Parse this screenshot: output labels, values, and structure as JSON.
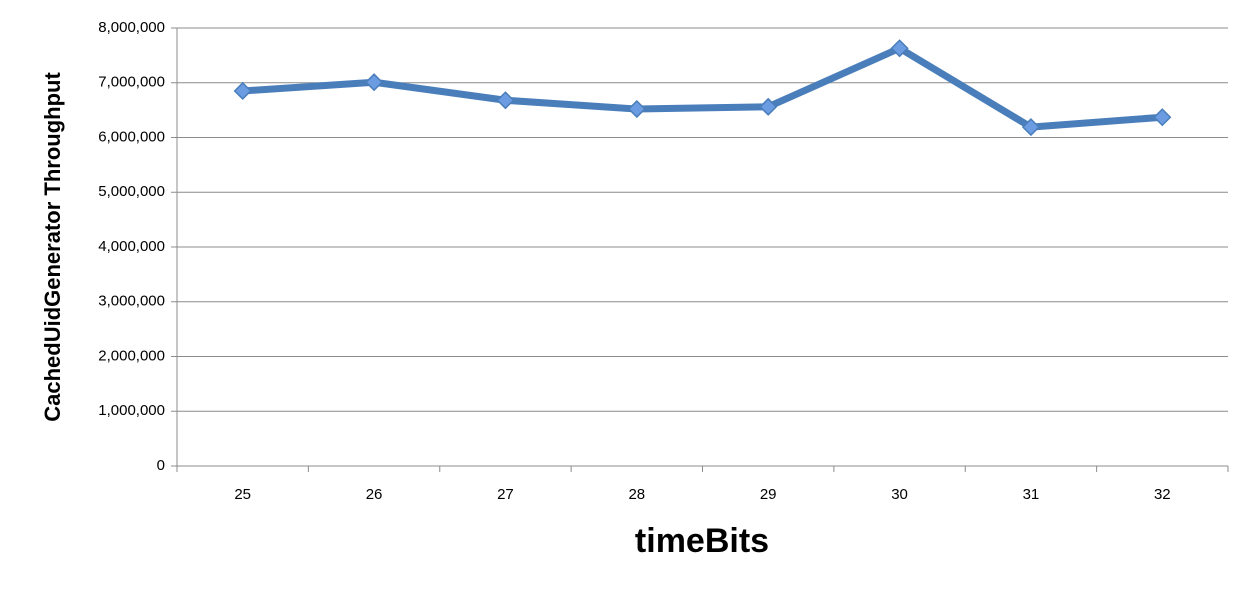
{
  "chart_data": {
    "type": "line",
    "x_label": "timeBits",
    "y_label": "CachedUidGenerator Throughput",
    "categories": [
      "25",
      "26",
      "27",
      "28",
      "29",
      "30",
      "31",
      "32"
    ],
    "values": [
      6850000,
      7010000,
      6680000,
      6520000,
      6560000,
      7630000,
      6190000,
      6370000
    ],
    "color": "#4a7ebb",
    "marker_color": "#6b9be0",
    "ylim": [
      0,
      8000000
    ],
    "yticks": [
      0,
      {
        "value": 1000000,
        "label": "1,000,000"
      },
      {
        "value": 2000000,
        "label": "2,000,000"
      },
      {
        "value": 3000000,
        "label": "3,000,000"
      },
      {
        "value": 4000000,
        "label": "4,000,000"
      },
      {
        "value": 5000000,
        "label": "5,000,000"
      },
      {
        "value": 6000000,
        "label": "6,000,000"
      },
      {
        "value": 7000000,
        "label": "7,000,000"
      },
      {
        "value": 8000000,
        "label": "8,000,000"
      }
    ],
    "grid": true
  }
}
